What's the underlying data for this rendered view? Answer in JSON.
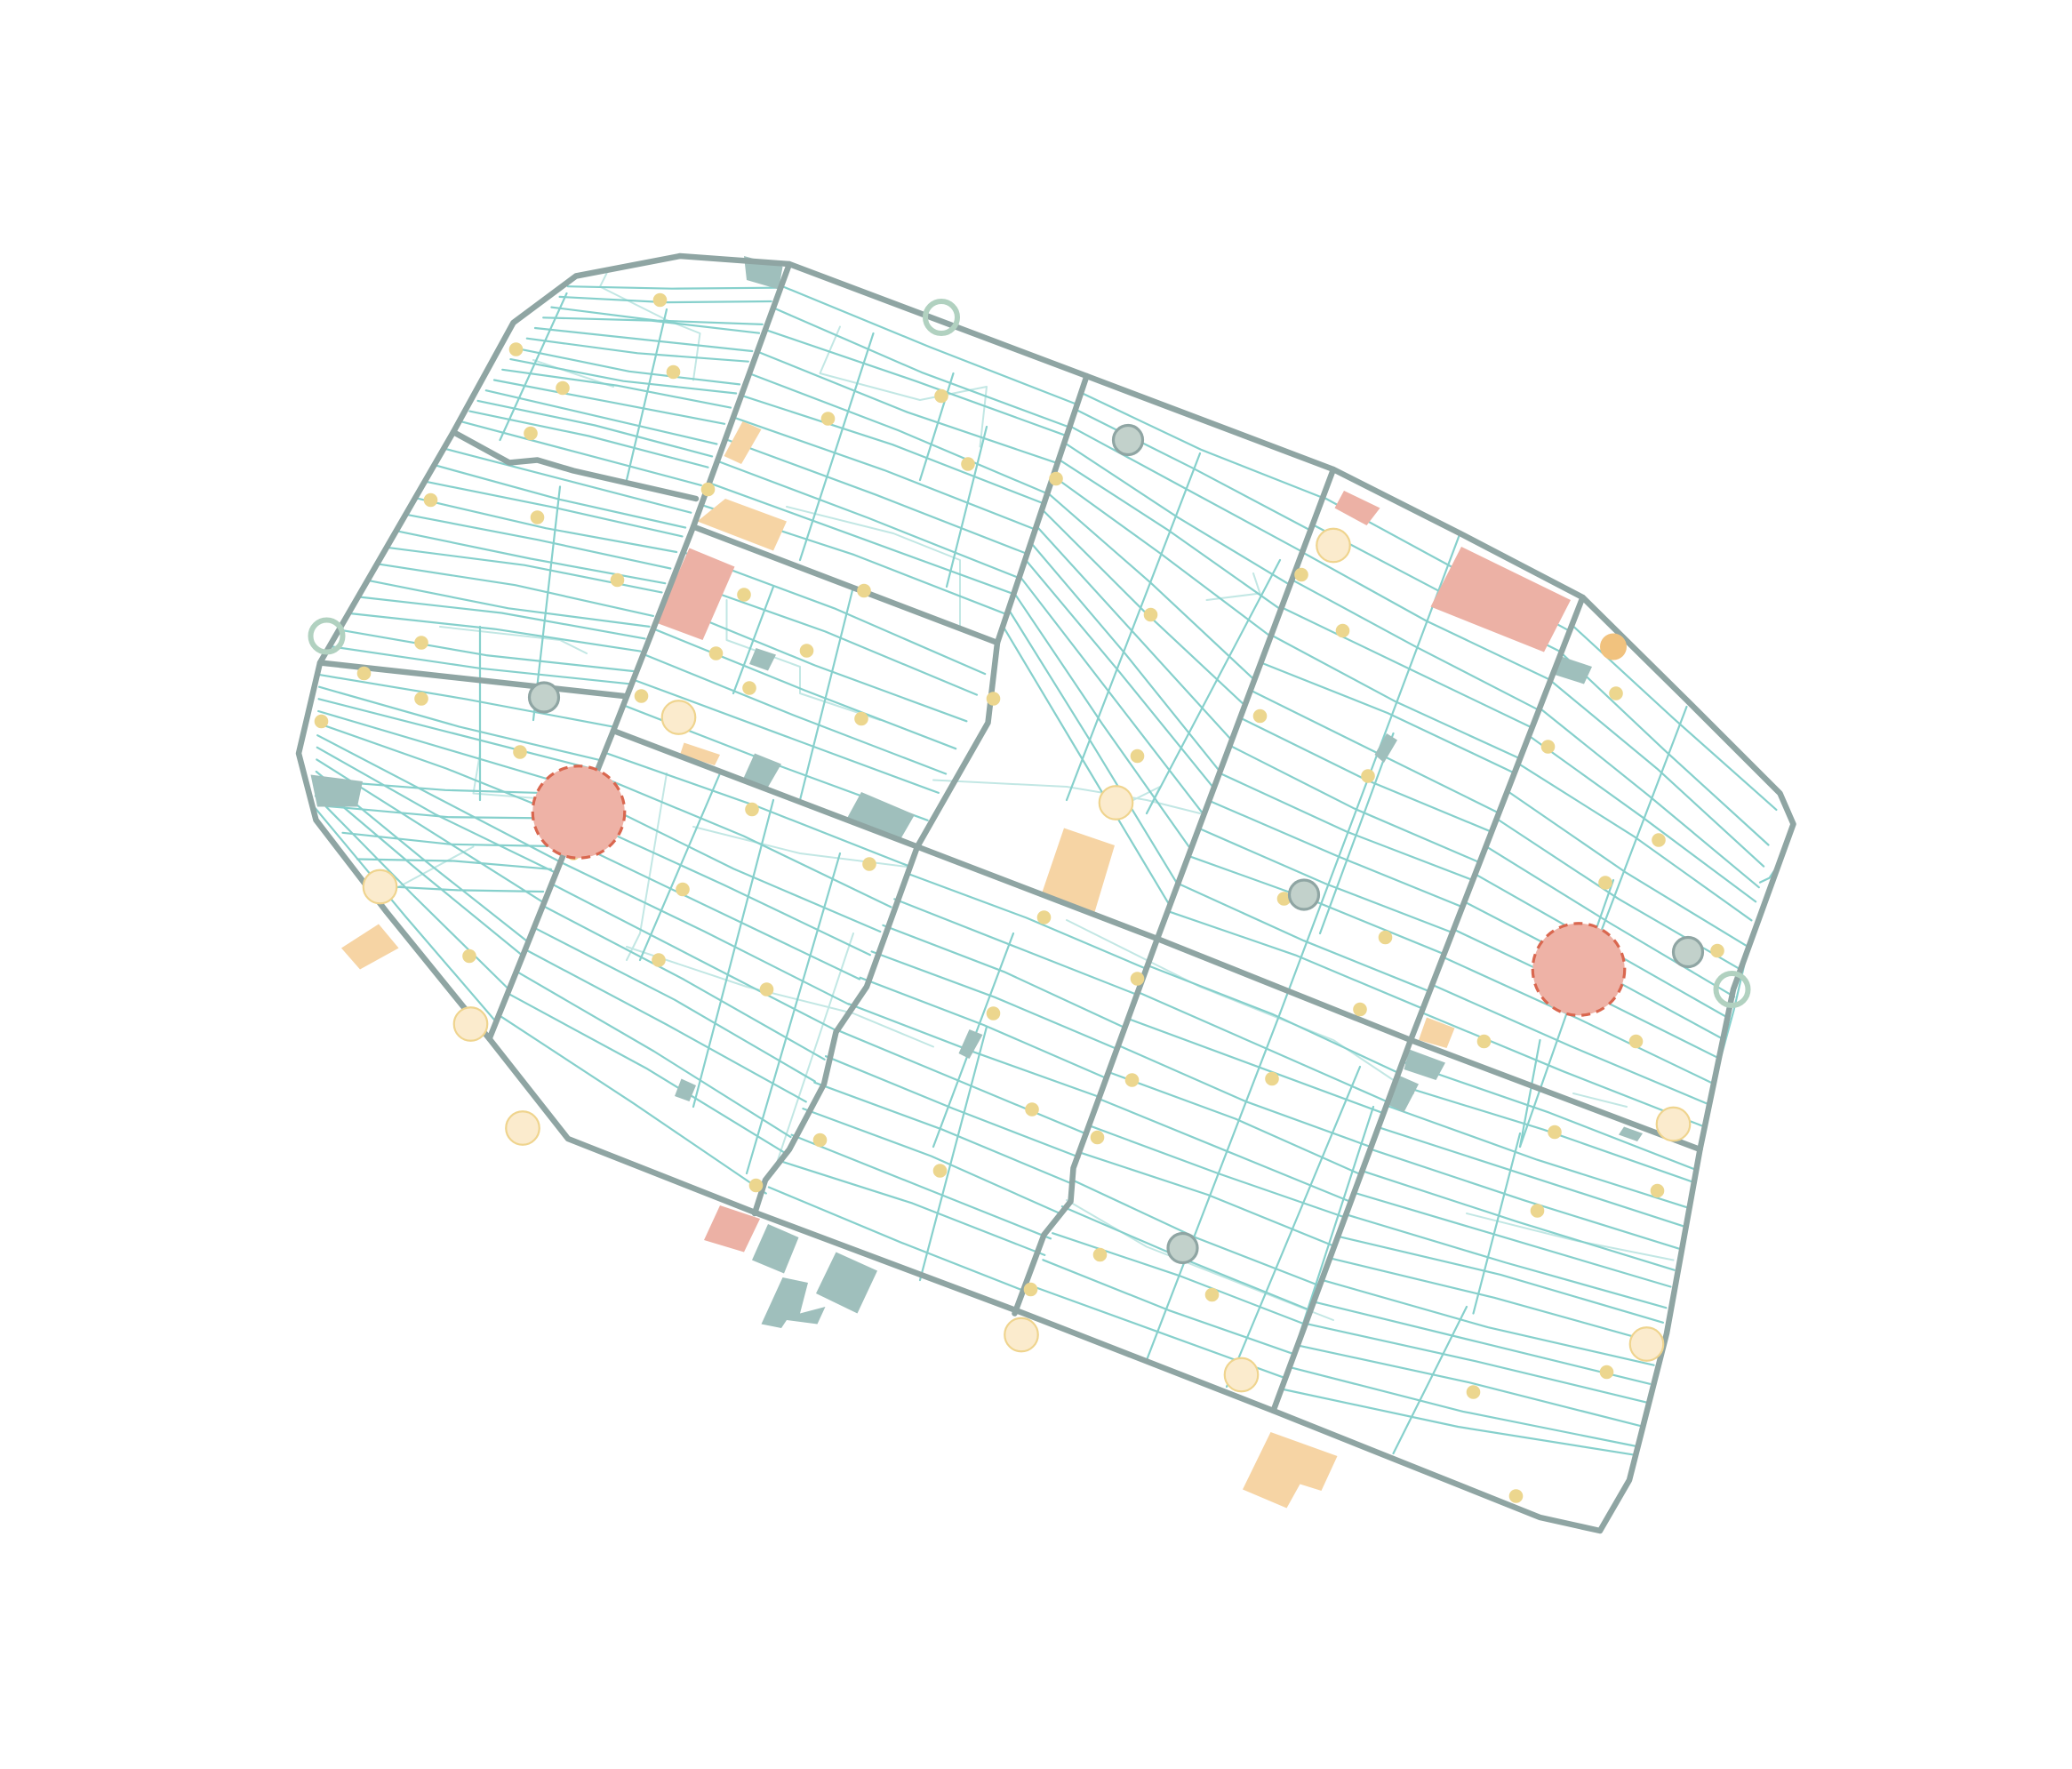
{
  "map": {
    "colors": {
      "background": "#ffffff",
      "main_road": "#8fa5a3",
      "minor_street": "#86d0cc",
      "alley": "#c2e7e4",
      "poi_dot": "#ecd68e",
      "large_poi_fill": "#fbebcd",
      "large_poi_stroke": "#efd48e",
      "hotspot_fill": "#eeb2a6",
      "hotspot_stroke": "#d9674f",
      "red_building": "#ecb1a5",
      "orange_building": "#f6d4a4",
      "teal_building": "#9fbfbc",
      "ring_marker": "#b1d1c0",
      "transit_stop_fill": "#c2d1cb",
      "transit_stop_stroke": "#8fa5a3",
      "orange_marker": "#f1c27e"
    },
    "icons": {
      "ring_marker": "ring-gate-icon",
      "transit_stop": "transit-stop-icon",
      "hotspot": "hotspot-icon",
      "poi": "poi-dot-icon"
    }
  }
}
